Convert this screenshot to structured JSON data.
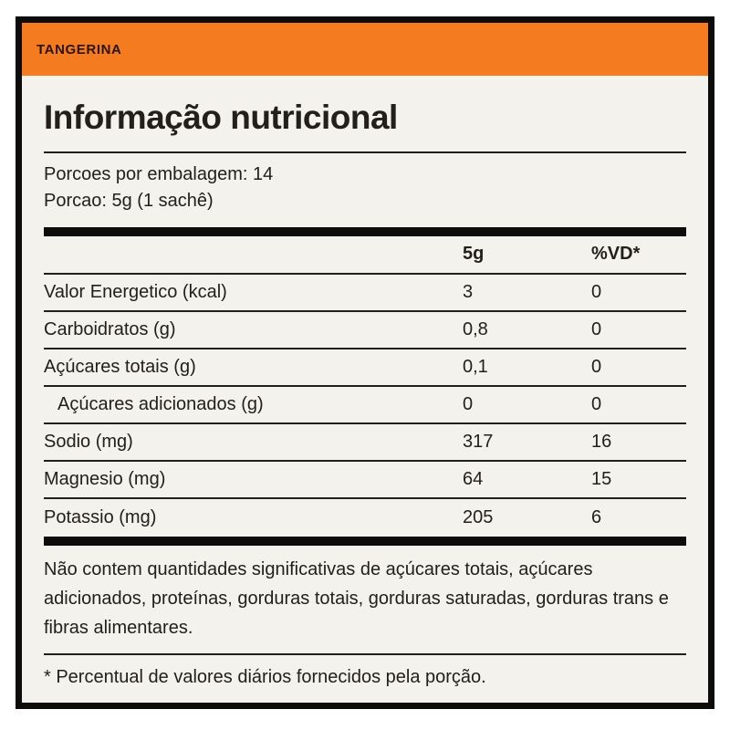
{
  "label": {
    "flavor": "TANGERINA",
    "title": "Informação nutricional",
    "servings_line": "Porcoes por embalagem: 14",
    "portion_line": "Porcao: 5g (1 sachê)",
    "columns": {
      "amount": "5g",
      "vd": "%VD*"
    },
    "rows": [
      {
        "name": "Valor Energetico (kcal)",
        "amount": "3",
        "vd": "0"
      },
      {
        "name": "Carboidratos (g)",
        "amount": "0,8",
        "vd": "0"
      },
      {
        "name": "Açúcares totais (g)",
        "amount": "0,1",
        "vd": "0"
      },
      {
        "name": "Açúcares adicionados (g)",
        "amount": "0",
        "vd": "0"
      },
      {
        "name": "Sodio (mg)",
        "amount": "317",
        "vd": "16"
      },
      {
        "name": "Magnesio (mg)",
        "amount": "64",
        "vd": "15"
      },
      {
        "name": "Potassio (mg)",
        "amount": "205",
        "vd": "6"
      }
    ],
    "note": "Não contem quantidades significativas de açúcares totais, açúcares adicionados, proteínas, gorduras totais, gorduras saturadas, gorduras trans e fibras alimentares.",
    "footnote": "* Percentual de valores diários fornecidos pela porção.",
    "colors": {
      "accent_orange": "#f57b20",
      "card_background": "#f4f2ed",
      "border_black": "#0e0c0a",
      "text": "#232019"
    }
  }
}
